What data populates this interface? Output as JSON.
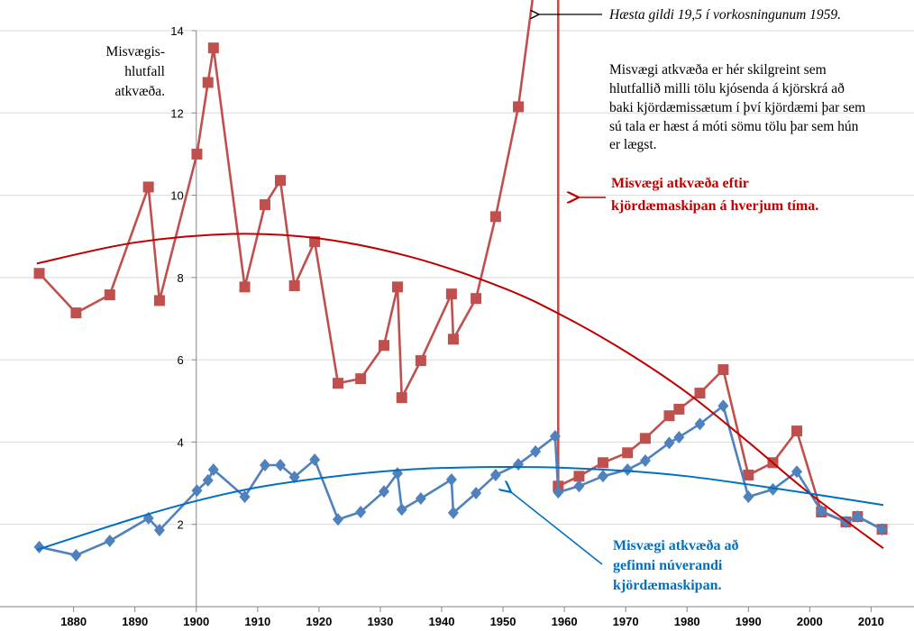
{
  "chart_data": {
    "type": "line",
    "xlim": [
      1868,
      2017
    ],
    "xticks": [
      1880,
      1890,
      1900,
      1910,
      1920,
      1930,
      1940,
      1950,
      1960,
      1970,
      1980,
      1990,
      2000,
      2010
    ],
    "ylim": [
      0,
      14
    ],
    "yticks": [
      2,
      4,
      6,
      8,
      10,
      12,
      14
    ],
    "y_axis_at": 1900,
    "grid": true,
    "y_axis_label": [
      "Misvægis-",
      "hlutfall",
      "atkvæða."
    ],
    "annotations": {
      "top_note": "Hæsta gildi 19,5 í vorkosningunum 1959.",
      "definition": [
        "Misvægi atkvæða er hér skilgreint sem",
        "hlutfallið milli tölu kjósenda á kjörskrá að",
        "baki kjördæmissætum í því kjördæmi þar sem",
        "sú tala er hæst á móti sömu tölu þar sem hún",
        "er lægst."
      ],
      "red_label": [
        "Misvægi atkvæða eftir",
        "kjördæmaskipan  á hverjum tíma."
      ],
      "blue_label": [
        "Misvægi atkvæða að",
        "gefinni núverandi",
        "kjördæmaskipan."
      ]
    },
    "series": [
      {
        "color": "#c0504d",
        "marker": "square",
        "x": [
          1874.4,
          1880.4,
          1885.9,
          1892.2,
          1894.0,
          1900.1,
          1901.9,
          1902.8,
          1907.9,
          1911.2,
          1913.7,
          1916.0,
          1919.3,
          1923.1,
          1926.8,
          1930.6,
          1932.8,
          1933.5,
          1936.6,
          1941.6,
          1941.9,
          1945.6,
          1948.8,
          1952.5,
          1959.0,
          1959.0,
          1962.4,
          1966.3,
          1970.3,
          1973.2,
          1977.1,
          1978.7,
          1982.1,
          1985.9,
          1990.0,
          1994.0,
          1997.9,
          2001.9,
          2005.9,
          2007.8,
          2011.8
        ],
        "values": [
          8.1,
          7.14,
          7.58,
          10.2,
          7.44,
          11.0,
          12.74,
          13.58,
          7.77,
          9.77,
          10.36,
          7.8,
          8.87,
          5.43,
          5.54,
          6.35,
          7.77,
          5.08,
          5.98,
          7.6,
          6.5,
          7.49,
          9.48,
          12.15,
          19.5,
          2.93,
          3.17,
          3.5,
          3.74,
          4.09,
          4.64,
          4.8,
          5.19,
          5.76,
          3.2,
          3.5,
          4.27,
          2.3,
          2.06,
          2.19,
          1.88
        ]
      },
      {
        "color": "#4f81bd",
        "marker": "diamond",
        "x": [
          1874.4,
          1880.4,
          1885.9,
          1892.2,
          1894.0,
          1900.1,
          1901.9,
          1902.8,
          1907.9,
          1911.2,
          1913.7,
          1916.0,
          1919.3,
          1923.1,
          1926.8,
          1930.6,
          1932.8,
          1933.5,
          1936.6,
          1941.6,
          1941.9,
          1945.6,
          1948.8,
          1952.5,
          1955.3,
          1958.5,
          1959.0,
          1962.4,
          1966.3,
          1970.3,
          1973.2,
          1977.1,
          1978.7,
          1982.1,
          1985.9,
          1990.0,
          1994.0,
          1997.9,
          2001.9,
          2005.9,
          2007.8,
          2011.8
        ],
        "values": [
          1.45,
          1.25,
          1.6,
          2.15,
          1.86,
          2.82,
          3.07,
          3.33,
          2.67,
          3.44,
          3.44,
          3.15,
          3.57,
          2.12,
          2.3,
          2.8,
          3.24,
          2.36,
          2.63,
          3.09,
          2.28,
          2.76,
          3.2,
          3.46,
          3.77,
          4.14,
          2.78,
          2.93,
          3.17,
          3.33,
          3.55,
          3.98,
          4.12,
          4.44,
          4.88,
          2.67,
          2.85,
          3.28,
          2.32,
          2.06,
          2.19,
          1.88
        ]
      },
      {
        "color": "#c00000",
        "marker": "none",
        "x": [
          1874,
          1890,
          1906,
          1920,
          1935,
          1950,
          1960,
          1970,
          1980,
          1990,
          2000,
          2012
        ],
        "values": [
          8.34,
          8.85,
          9.06,
          8.95,
          8.5,
          7.75,
          7.05,
          6.2,
          5.2,
          4.0,
          2.75,
          1.42
        ]
      },
      {
        "color": "#0070c0",
        "marker": "none",
        "x": [
          1874,
          1890,
          1900,
          1910,
          1920,
          1930,
          1940,
          1956,
          1970,
          1980,
          1990,
          2000,
          2012
        ],
        "values": [
          1.38,
          2.15,
          2.57,
          2.9,
          3.12,
          3.28,
          3.37,
          3.39,
          3.3,
          3.17,
          2.97,
          2.75,
          2.47
        ]
      }
    ]
  }
}
